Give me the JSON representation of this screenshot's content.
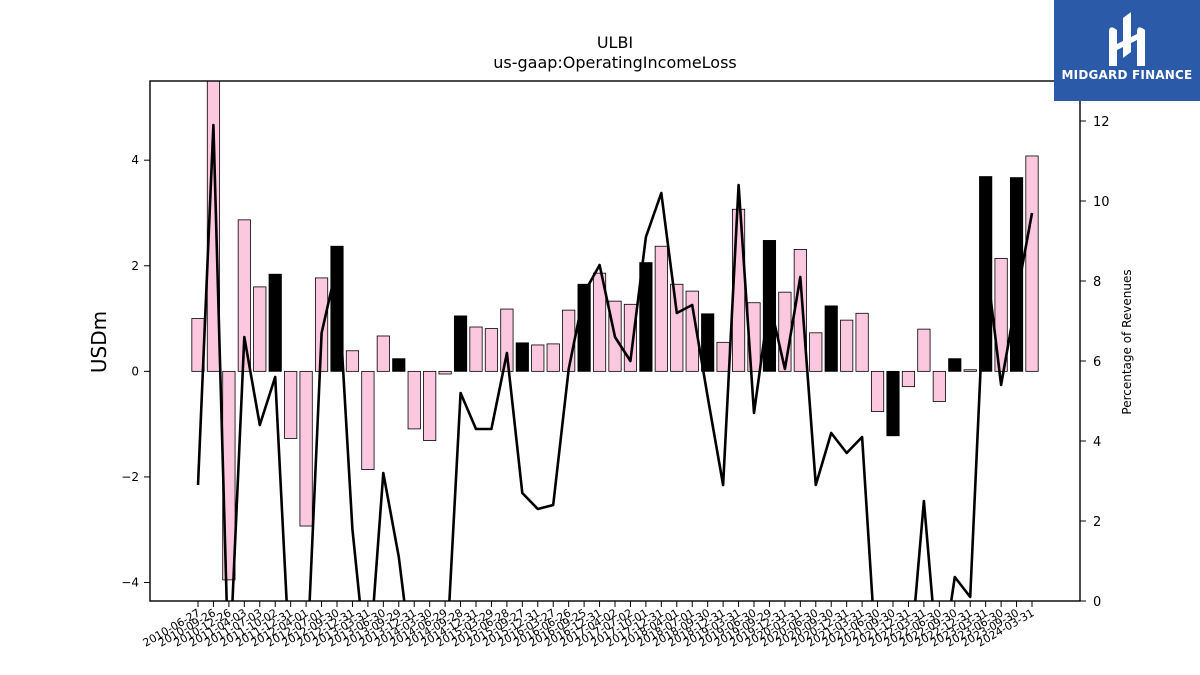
{
  "chart_data": {
    "type": "bar",
    "title": "ULBI",
    "subtitle": "us-gaap:OperatingIncomeLoss",
    "ylabel": "USDm",
    "y2label": "Percentage of Revenues",
    "ylim": [
      -4.35,
      5.5
    ],
    "y2lim": [
      0,
      13.0
    ],
    "yticks": [
      -4,
      -2,
      0,
      2,
      4
    ],
    "y2ticks": [
      0,
      2,
      4,
      6,
      8,
      10,
      12
    ],
    "categories": [
      "2010-06-27",
      "2010-09-26",
      "2010-12-26",
      "2011-04-03",
      "2011-07-03",
      "2011-10-02",
      "2011-12-31",
      "2012-04-01",
      "2012-07-01",
      "2012-09-30",
      "2012-12-31",
      "2013-03-31",
      "2013-06-30",
      "2013-09-29",
      "2013-12-31",
      "2014-03-30",
      "2014-06-29",
      "2014-09-28",
      "2014-12-31",
      "2015-03-29",
      "2015-06-28",
      "2015-09-27",
      "2015-12-31",
      "2016-03-27",
      "2016-06-26",
      "2016-09-25",
      "2016-12-31",
      "2017-04-02",
      "2017-07-02",
      "2017-10-01",
      "2017-12-31",
      "2018-04-01",
      "2018-07-01",
      "2018-09-30",
      "2018-12-31",
      "2019-03-31",
      "2019-06-30",
      "2019-09-29",
      "2019-12-31",
      "2020-03-31",
      "2020-06-30",
      "2020-09-30",
      "2020-12-31",
      "2021-03-31",
      "2021-06-30",
      "2021-09-30",
      "2021-12-31",
      "2022-03-31",
      "2022-06-30",
      "2022-09-30",
      "2022-12-31",
      "2023-03-31",
      "2023-06-30",
      "2023-09-30",
      "2024-03-31"
    ],
    "values": [
      1.0,
      5.5,
      -3.95,
      2.87,
      1.6,
      1.84,
      -1.27,
      -2.93,
      1.77,
      2.37,
      0.39,
      -1.86,
      0.67,
      0.24,
      -1.09,
      -1.31,
      -0.05,
      1.05,
      0.84,
      0.81,
      1.18,
      0.54,
      0.5,
      0.52,
      1.16,
      1.65,
      1.86,
      1.33,
      1.27,
      2.06,
      2.37,
      1.65,
      1.52,
      1.09,
      0.55,
      3.07,
      1.3,
      2.48,
      1.5,
      2.31,
      0.73,
      1.24,
      0.97,
      1.1,
      -0.76,
      -1.22,
      -0.29,
      0.8,
      -0.57,
      0.24,
      0.03,
      3.69,
      2.14,
      3.67,
      4.08
    ],
    "highlight": [
      false,
      false,
      false,
      false,
      false,
      true,
      false,
      false,
      false,
      true,
      false,
      false,
      false,
      true,
      false,
      false,
      false,
      true,
      false,
      false,
      false,
      true,
      false,
      false,
      false,
      true,
      false,
      false,
      false,
      true,
      false,
      false,
      false,
      true,
      false,
      false,
      false,
      true,
      false,
      false,
      false,
      true,
      false,
      false,
      false,
      true,
      false,
      false,
      false,
      true,
      false,
      true,
      false,
      true,
      false
    ],
    "line_name": "Percentage of Revenues",
    "line_values": [
      2.9,
      11.9,
      -2.0,
      6.6,
      4.4,
      5.6,
      -2.0,
      -2.0,
      6.7,
      8.4,
      1.8,
      -2.0,
      3.2,
      1.1,
      -2.0,
      -2.0,
      -2.0,
      5.2,
      4.3,
      4.3,
      6.2,
      2.7,
      2.3,
      2.4,
      5.8,
      7.7,
      8.4,
      6.6,
      6.0,
      9.1,
      10.2,
      7.2,
      7.4,
      5.1,
      2.9,
      10.4,
      4.7,
      7.5,
      5.8,
      8.1,
      2.9,
      4.2,
      3.7,
      4.1,
      -2.0,
      -2.0,
      -2.0,
      2.5,
      -2.0,
      0.6,
      0.1,
      8.6,
      5.4,
      7.6,
      9.7
    ],
    "colors": {
      "bar": "#fbc8e0",
      "bar_highlight": "#000000",
      "bar_edge": "#000000",
      "line": "#000000"
    },
    "grid": false
  },
  "logo": {
    "text": "MIDGARD FINANCE",
    "bg": "#2b5aa8"
  }
}
